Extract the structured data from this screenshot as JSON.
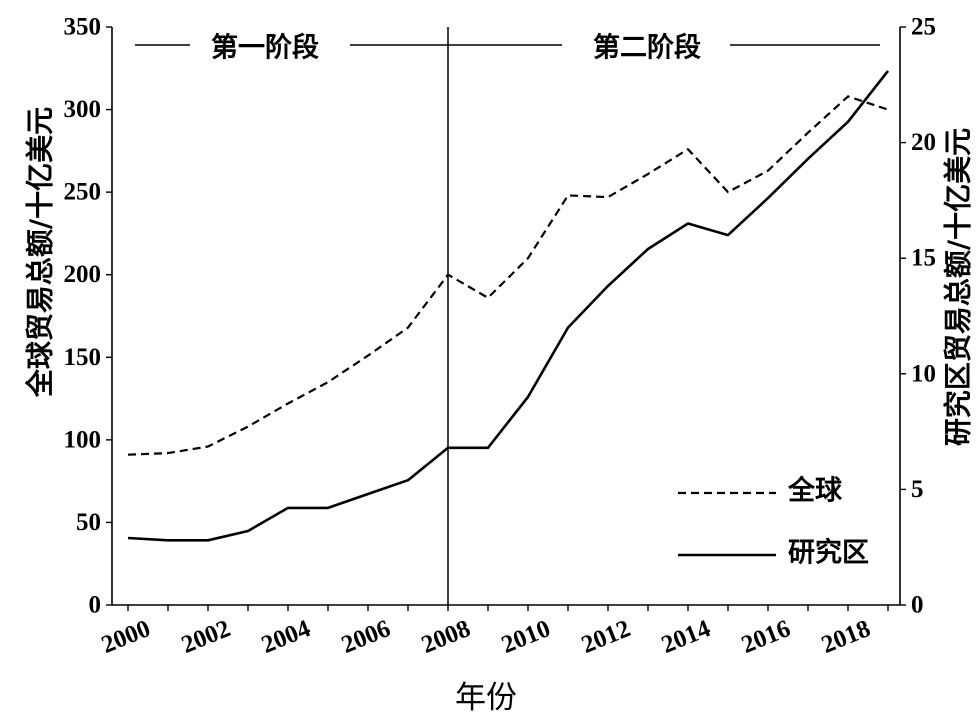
{
  "chart_data": {
    "type": "line",
    "xlabel": "年份",
    "x": [
      2000,
      2001,
      2002,
      2003,
      2004,
      2005,
      2006,
      2007,
      2008,
      2009,
      2010,
      2011,
      2012,
      2013,
      2014,
      2015,
      2016,
      2017,
      2018,
      2019
    ],
    "x_ticks": [
      2000,
      2002,
      2004,
      2006,
      2008,
      2010,
      2012,
      2014,
      2016,
      2018
    ],
    "xlim": [
      1999.6,
      2019.3
    ],
    "y_left": {
      "label": "全球贸易总额/十亿美元",
      "ylim": [
        0,
        350
      ],
      "ticks": [
        0,
        50,
        100,
        150,
        200,
        250,
        300,
        350
      ]
    },
    "y_right": {
      "label": "研究区贸易总额/十亿美元",
      "ylim": [
        0,
        25
      ],
      "ticks": [
        0,
        5,
        10,
        15,
        20,
        25
      ]
    },
    "series": [
      {
        "name": "全球",
        "y_axis": "left",
        "dashed": true,
        "color": "#000000",
        "values": [
          91,
          92,
          96,
          108,
          122,
          135,
          151,
          168,
          200,
          186,
          210,
          248,
          247,
          261,
          276,
          250,
          263,
          286,
          308,
          300
        ]
      },
      {
        "name": "研究区",
        "y_axis": "right",
        "dashed": false,
        "color": "#000000",
        "values": [
          2.9,
          2.8,
          2.8,
          3.2,
          4.2,
          4.2,
          4.8,
          5.4,
          6.8,
          6.8,
          9.0,
          12.0,
          13.8,
          15.4,
          16.5,
          16.0,
          17.6,
          19.3,
          20.9,
          23.1
        ]
      }
    ],
    "divider_x": 2008,
    "stages": [
      "第一阶段",
      "第二阶段"
    ],
    "legend": "bottom-right",
    "grid": false
  }
}
